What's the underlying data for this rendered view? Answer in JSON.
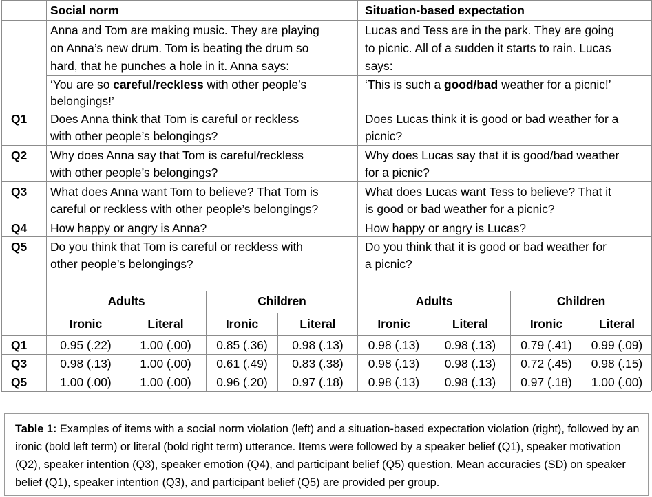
{
  "headers": {
    "left": "Social norm",
    "right": "Situation-based expectation"
  },
  "scenario": {
    "left": [
      "Anna and Tom are making music. They are playing",
      "on Anna’s new drum. Tom is beating the drum so",
      "hard, that he punches a hole in it. Anna says:"
    ],
    "right": [
      "Lucas and Tess are in the park. They are going",
      "to picnic. All of a sudden it starts to rain. Lucas",
      "says:"
    ]
  },
  "utterance": {
    "left": {
      "pre": "‘You are so ",
      "bold": "careful/reckless",
      "post": " with other people’s",
      "line2": "belongings!’"
    },
    "right": {
      "pre": "‘This is such a ",
      "bold": "good/bad",
      "post": " weather for a picnic!’"
    }
  },
  "questions": [
    {
      "label": "Q1",
      "left": [
        "Does Anna think that Tom is careful or reckless",
        "with other people’s belongings?"
      ],
      "right": [
        "Does Lucas think it is good or bad weather for a",
        "picnic?"
      ]
    },
    {
      "label": "Q2",
      "left": [
        "Why does Anna say that Tom is careful/reckless",
        "with other people’s belongings?"
      ],
      "right": [
        "Why does Lucas say that it is good/bad weather",
        "for a picnic?"
      ]
    },
    {
      "label": "Q3",
      "left": [
        "What does Anna want Tom to believe? That Tom is",
        "careful or reckless with other people’s belongings?"
      ],
      "right": [
        "What does Lucas want Tess to believe? That it",
        "is good or bad weather for a picnic?"
      ]
    },
    {
      "label": "Q4",
      "left": [
        "How happy or angry is Anna?"
      ],
      "right": [
        "How happy or angry is Lucas?"
      ]
    },
    {
      "label": "Q5",
      "left": [
        "Do you think that Tom is careful or reckless with",
        "other people’s belongings?"
      ],
      "right": [
        "Do you think that it is good or bad weather for",
        "a picnic?"
      ]
    }
  ],
  "results": {
    "groups": [
      "Adults",
      "Children",
      "Adults",
      "Children"
    ],
    "subheaders": [
      "Ironic",
      "Literal",
      "Ironic",
      "Literal",
      "Ironic",
      "Literal",
      "Ironic",
      "Literal"
    ],
    "rows": [
      {
        "label": "Q1",
        "values": [
          "0.95 (.22)",
          "1.00 (.00)",
          "0.85 (.36)",
          "0.98 (.13)",
          "0.98 (.13)",
          "0.98 (.13)",
          "0.79 (.41)",
          "0.99 (.09)"
        ]
      },
      {
        "label": "Q3",
        "values": [
          "0.98 (.13)",
          "1.00 (.00)",
          "0.61 (.49)",
          "0.83 (.38)",
          "0.98 (.13)",
          "0.98 (.13)",
          "0.72 (.45)",
          "0.98 (.15)"
        ]
      },
      {
        "label": "Q5",
        "values": [
          "1.00 (.00)",
          "1.00 (.00)",
          "0.96 (.20)",
          "0.97 (.18)",
          "0.98 (.13)",
          "0.98 (.13)",
          "0.97 (.18)",
          "1.00 (.00)"
        ]
      }
    ]
  },
  "caption": {
    "label": "Table 1:",
    "text": " Examples of items with a social norm violation (left) and a situation-based expectation violation (right), followed by an ironic (bold left term) or literal (bold right term) utterance. Items were followed by a speaker belief (Q1), speaker motivation (Q2), speaker intention (Q3), speaker emotion (Q4), and participant belief (Q5) question. Mean accuracies (SD) on speaker belief (Q1), speaker intention (Q3), and participant belief (Q5) are provided per group."
  }
}
